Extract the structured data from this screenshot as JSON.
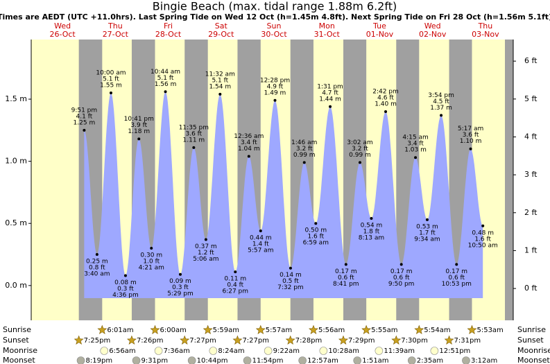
{
  "title": "Bingie Beach (max. tidal range 1.88m 6.2ft)",
  "subtitle": "Times are AEDT (UTC +11.0hrs). Last Spring Tide on Wed 12 Oct (h=1.45m 4.8ft). Next Spring Tide on Fri 28 Oct (h=1.56m 5.1ft)",
  "row_labels": [
    "Sunrise",
    "Sunset",
    "Moonrise",
    "Moonset"
  ],
  "colors": {
    "day": "#ffffc8",
    "night": "#a0a0a0",
    "tide": "#9ea8ff",
    "day_label": "#cc0000"
  },
  "ylim": [
    -0.28,
    1.98
  ],
  "yticks": [
    {
      "value": 0,
      "label": "0.0 m"
    },
    {
      "value": 0.5,
      "label": "0.5 m"
    },
    {
      "value": 1,
      "label": "1.0 m"
    },
    {
      "value": 1.5,
      "label": "1.5 m"
    }
  ],
  "y2lim": [
    -0.84,
    6.57
  ],
  "y2ticks": [
    {
      "value": 0,
      "label": "0 ft"
    },
    {
      "value": 1,
      "label": "1 ft"
    },
    {
      "value": 2,
      "label": "2 ft"
    },
    {
      "value": 3,
      "label": "3 ft"
    },
    {
      "value": 4,
      "label": "4 ft"
    },
    {
      "value": 5,
      "label": "5 ft"
    },
    {
      "value": 6,
      "label": "6 ft"
    }
  ],
  "days": [
    {
      "name": "Wed",
      "date": "26-Oct",
      "sunset": "7:25pm",
      "moonset": "8:19pm",
      "tides": [
        {
          "time": "9:51 pm",
          "height_ft": 4.1,
          "height_ft_label": "4.1 ft",
          "height_m": 1.25,
          "height_m_label": "1.25 m"
        }
      ]
    },
    {
      "name": "Thu",
      "date": "27-Oct",
      "sunrise": "6:01am",
      "sunset": "7:26pm",
      "moonrise": "6:56am",
      "moonset": "9:31pm",
      "tides": [
        {
          "time": "3:40 am",
          "height_ft": 0.8,
          "height_ft_label": "0.8 ft",
          "height_m": 0.25,
          "height_m_label": "0.25 m"
        },
        {
          "time": "10:00 am",
          "height_ft": 5.1,
          "height_ft_label": "5.1 ft",
          "height_m": 1.55,
          "height_m_label": "1.55 m"
        },
        {
          "time": "4:36 pm",
          "height_ft": 0.3,
          "height_ft_label": "0.3 ft",
          "height_m": 0.08,
          "height_m_label": "0.08 m"
        },
        {
          "time": "10:41 pm",
          "height_ft": 3.9,
          "height_ft_label": "3.9 ft",
          "height_m": 1.18,
          "height_m_label": "1.18 m"
        }
      ]
    },
    {
      "name": "Fri",
      "date": "28-Oct",
      "sunrise": "6:00am",
      "sunset": "7:27pm",
      "moonrise": "7:36am",
      "moonset": "10:44pm",
      "tides": [
        {
          "time": "4:21 am",
          "height_ft": 1.0,
          "height_ft_label": "1.0 ft",
          "height_m": 0.3,
          "height_m_label": "0.30 m"
        },
        {
          "time": "10:44 am",
          "height_ft": 5.1,
          "height_ft_label": "5.1 ft",
          "height_m": 1.56,
          "height_m_label": "1.56 m"
        },
        {
          "time": "5:29 pm",
          "height_ft": 0.3,
          "height_ft_label": "0.3 ft",
          "height_m": 0.09,
          "height_m_label": "0.09 m"
        },
        {
          "time": "11:35 pm",
          "height_ft": 3.6,
          "height_ft_label": "3.6 ft",
          "height_m": 1.11,
          "height_m_label": "1.11 m"
        }
      ]
    },
    {
      "name": "Sat",
      "date": "29-Oct",
      "sunrise": "5:59am",
      "sunset": "7:27pm",
      "moonrise": "8:24am",
      "moonset": "11:54pm",
      "tides": [
        {
          "time": "5:06 am",
          "height_ft": 1.2,
          "height_ft_label": "1.2 ft",
          "height_m": 0.37,
          "height_m_label": "0.37 m"
        },
        {
          "time": "11:32 am",
          "height_ft": 5.1,
          "height_ft_label": "5.1 ft",
          "height_m": 1.54,
          "height_m_label": "1.54 m"
        },
        {
          "time": "6:27 pm",
          "height_ft": 0.4,
          "height_ft_label": "0.4 ft",
          "height_m": 0.11,
          "height_m_label": "0.11 m"
        }
      ]
    },
    {
      "name": "Sun",
      "date": "30-Oct",
      "sunrise": "5:57am",
      "sunset": "7:28pm",
      "moonrise": "9:22am",
      "tides": [
        {
          "time": "12:36 am",
          "height_ft": 3.4,
          "height_ft_label": "3.4 ft",
          "height_m": 1.04,
          "height_m_label": "1.04 m"
        },
        {
          "time": "5:57 am",
          "height_ft": 1.4,
          "height_ft_label": "1.4 ft",
          "height_m": 0.44,
          "height_m_label": "0.44 m"
        },
        {
          "time": "12:28 pm",
          "height_ft": 4.9,
          "height_ft_label": "4.9 ft",
          "height_m": 1.49,
          "height_m_label": "1.49 m"
        },
        {
          "time": "7:32 pm",
          "height_ft": 0.5,
          "height_ft_label": "0.5 ft",
          "height_m": 0.14,
          "height_m_label": "0.14 m"
        }
      ]
    },
    {
      "name": "Mon",
      "date": "31-Oct",
      "sunrise": "5:56am",
      "sunset": "7:29pm",
      "moonrise": "10:28am",
      "moonset": "12:57am",
      "tides": [
        {
          "time": "1:46 am",
          "height_ft": 3.2,
          "height_ft_label": "3.2 ft",
          "height_m": 0.99,
          "height_m_label": "0.99 m"
        },
        {
          "time": "6:59 am",
          "height_ft": 1.6,
          "height_ft_label": "1.6 ft",
          "height_m": 0.5,
          "height_m_label": "0.50 m"
        },
        {
          "time": "1:31 pm",
          "height_ft": 4.7,
          "height_ft_label": "4.7 ft",
          "height_m": 1.44,
          "height_m_label": "1.44 m"
        },
        {
          "time": "8:41 pm",
          "height_ft": 0.6,
          "height_ft_label": "0.6 ft",
          "height_m": 0.17,
          "height_m_label": "0.17 m"
        }
      ]
    },
    {
      "name": "Tue",
      "date": "01-Nov",
      "sunrise": "5:55am",
      "sunset": "7:30pm",
      "moonrise": "11:39am",
      "moonset": "1:51am",
      "tides": [
        {
          "time": "3:02 am",
          "height_ft": 3.2,
          "height_ft_label": "3.2 ft",
          "height_m": 0.99,
          "height_m_label": "0.99 m"
        },
        {
          "time": "8:13 am",
          "height_ft": 1.8,
          "height_ft_label": "1.8 ft",
          "height_m": 0.54,
          "height_m_label": "0.54 m"
        },
        {
          "time": "2:42 pm",
          "height_ft": 4.6,
          "height_ft_label": "4.6 ft",
          "height_m": 1.4,
          "height_m_label": "1.40 m"
        },
        {
          "time": "9:50 pm",
          "height_ft": 0.6,
          "height_ft_label": "0.6 ft",
          "height_m": 0.17,
          "height_m_label": "0.17 m"
        }
      ]
    },
    {
      "name": "Wed",
      "date": "02-Nov",
      "sunrise": "5:54am",
      "sunset": "7:31pm",
      "moonrise": "12:51pm",
      "moonset": "2:35am",
      "tides": [
        {
          "time": "4:15 am",
          "height_ft": 3.4,
          "height_ft_label": "3.4 ft",
          "height_m": 1.03,
          "height_m_label": "1.03 m"
        },
        {
          "time": "9:34 am",
          "height_ft": 1.7,
          "height_ft_label": "1.7 ft",
          "height_m": 0.53,
          "height_m_label": "0.53 m"
        },
        {
          "time": "3:54 pm",
          "height_ft": 4.5,
          "height_ft_label": "4.5 ft",
          "height_m": 1.37,
          "height_m_label": "1.37 m"
        },
        {
          "time": "10:53 pm",
          "height_ft": 0.6,
          "height_ft_label": "0.6 ft",
          "height_m": 0.17,
          "height_m_label": "0.17 m"
        }
      ]
    },
    {
      "name": "Thu",
      "date": "03-Nov",
      "sunrise": "5:53am",
      "moonset": "3:12am",
      "tides": [
        {
          "time": "5:17 am",
          "height_ft": 3.6,
          "height_ft_label": "3.6 ft",
          "height_m": 1.1,
          "height_m_label": "1.10 m"
        },
        {
          "time": "10:50 am",
          "height_ft": 1.6,
          "height_ft_label": "1.6 ft",
          "height_m": 0.48,
          "height_m_label": "0.48 m"
        }
      ]
    }
  ]
}
